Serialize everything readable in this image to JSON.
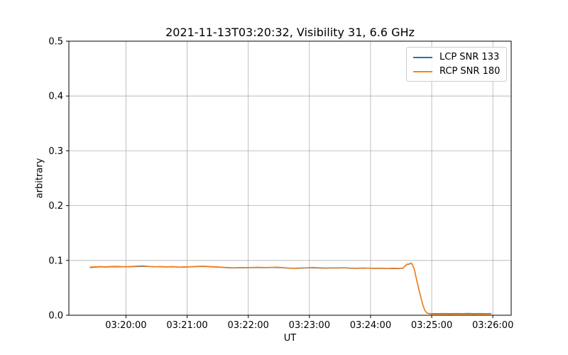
{
  "chart_data": {
    "type": "line",
    "title": "2021-11-13T03:20:32, Visibility 31, 6.6 GHz",
    "xlabel": "UT",
    "ylabel": "arbitrary",
    "x_unit": "seconds after 03:19:00 UT",
    "xlim": [
      4,
      438
    ],
    "ylim": [
      0.0,
      0.5
    ],
    "grid": true,
    "grid_color": "#b0b0b0",
    "axis_color": "#000000",
    "background_color": "#ffffff",
    "legend_position": "upper right",
    "xticks": [
      {
        "t": 60,
        "label": "03:20:00"
      },
      {
        "t": 120,
        "label": "03:21:00"
      },
      {
        "t": 180,
        "label": "03:22:00"
      },
      {
        "t": 240,
        "label": "03:23:00"
      },
      {
        "t": 300,
        "label": "03:24:00"
      },
      {
        "t": 360,
        "label": "03:25:00"
      },
      {
        "t": 420,
        "label": "03:26:00"
      }
    ],
    "yticks": [
      {
        "v": 0.0,
        "label": "0.0"
      },
      {
        "v": 0.1,
        "label": "0.1"
      },
      {
        "v": 0.2,
        "label": "0.2"
      },
      {
        "v": 0.3,
        "label": "0.3"
      },
      {
        "v": 0.4,
        "label": "0.4"
      },
      {
        "v": 0.5,
        "label": "0.5"
      }
    ],
    "series": [
      {
        "name": "LCP SNR 133",
        "color": "#1f77b4",
        "points": [
          [
            25,
            0.0872
          ],
          [
            30,
            0.0878
          ],
          [
            35,
            0.0884
          ],
          [
            40,
            0.088
          ],
          [
            45,
            0.0884
          ],
          [
            50,
            0.0886
          ],
          [
            55,
            0.0883
          ],
          [
            60,
            0.0884
          ],
          [
            65,
            0.0886
          ],
          [
            70,
            0.0888
          ],
          [
            76,
            0.0893
          ],
          [
            82,
            0.0889
          ],
          [
            88,
            0.0883
          ],
          [
            94,
            0.0884
          ],
          [
            100,
            0.0881
          ],
          [
            106,
            0.0884
          ],
          [
            112,
            0.0877
          ],
          [
            118,
            0.088
          ],
          [
            124,
            0.0884
          ],
          [
            130,
            0.0887
          ],
          [
            136,
            0.089
          ],
          [
            142,
            0.0886
          ],
          [
            148,
            0.088
          ],
          [
            154,
            0.0874
          ],
          [
            160,
            0.0867
          ],
          [
            166,
            0.0863
          ],
          [
            172,
            0.0868
          ],
          [
            178,
            0.0866
          ],
          [
            184,
            0.0869
          ],
          [
            190,
            0.0872
          ],
          [
            196,
            0.0868
          ],
          [
            202,
            0.087
          ],
          [
            208,
            0.0872
          ],
          [
            214,
            0.0866
          ],
          [
            220,
            0.0858
          ],
          [
            226,
            0.0855
          ],
          [
            232,
            0.086
          ],
          [
            238,
            0.0863
          ],
          [
            244,
            0.0867
          ],
          [
            250,
            0.0862
          ],
          [
            256,
            0.0859
          ],
          [
            262,
            0.0863
          ],
          [
            268,
            0.0861
          ],
          [
            274,
            0.0864
          ],
          [
            280,
            0.0858
          ],
          [
            286,
            0.0855
          ],
          [
            292,
            0.0859
          ],
          [
            298,
            0.0857
          ],
          [
            304,
            0.0853
          ],
          [
            310,
            0.0856
          ],
          [
            316,
            0.0851
          ],
          [
            322,
            0.0854
          ],
          [
            328,
            0.0852
          ],
          [
            332,
            0.0858
          ],
          [
            334,
            0.09
          ],
          [
            336,
            0.0929
          ],
          [
            338,
            0.0932
          ],
          [
            339.5,
            0.095
          ],
          [
            341,
            0.0926
          ],
          [
            343,
            0.0836
          ],
          [
            345,
            0.0661
          ],
          [
            347,
            0.0506
          ],
          [
            349,
            0.0351
          ],
          [
            351,
            0.0206
          ],
          [
            353,
            0.0097
          ],
          [
            355,
            0.0044
          ],
          [
            357,
            0.0032
          ],
          [
            360,
            0.003
          ],
          [
            366,
            0.0029
          ],
          [
            372,
            0.0031
          ],
          [
            378,
            0.0029
          ],
          [
            384,
            0.0031
          ],
          [
            390,
            0.003
          ],
          [
            396,
            0.0032
          ],
          [
            402,
            0.0029
          ],
          [
            408,
            0.0031
          ],
          [
            413,
            0.003
          ],
          [
            418,
            0.0031
          ]
        ]
      },
      {
        "name": "RCP SNR 180",
        "color": "#ff7f0e",
        "points": [
          [
            25,
            0.088
          ],
          [
            30,
            0.0884
          ],
          [
            35,
            0.0889
          ],
          [
            40,
            0.0885
          ],
          [
            45,
            0.0891
          ],
          [
            50,
            0.0893
          ],
          [
            55,
            0.0888
          ],
          [
            60,
            0.0887
          ],
          [
            65,
            0.0891
          ],
          [
            70,
            0.0895
          ],
          [
            76,
            0.09
          ],
          [
            82,
            0.0893
          ],
          [
            88,
            0.0886
          ],
          [
            94,
            0.0889
          ],
          [
            100,
            0.0885
          ],
          [
            106,
            0.0888
          ],
          [
            112,
            0.088
          ],
          [
            118,
            0.0883
          ],
          [
            124,
            0.0887
          ],
          [
            130,
            0.0892
          ],
          [
            136,
            0.0895
          ],
          [
            142,
            0.089
          ],
          [
            148,
            0.0884
          ],
          [
            154,
            0.0878
          ],
          [
            160,
            0.087
          ],
          [
            166,
            0.0866
          ],
          [
            172,
            0.0871
          ],
          [
            178,
            0.0869
          ],
          [
            184,
            0.0873
          ],
          [
            190,
            0.0876
          ],
          [
            196,
            0.0871
          ],
          [
            202,
            0.0874
          ],
          [
            208,
            0.0877
          ],
          [
            214,
            0.0869
          ],
          [
            220,
            0.0862
          ],
          [
            226,
            0.0858
          ],
          [
            232,
            0.0864
          ],
          [
            238,
            0.0867
          ],
          [
            244,
            0.0871
          ],
          [
            250,
            0.0866
          ],
          [
            256,
            0.0862
          ],
          [
            262,
            0.0867
          ],
          [
            268,
            0.0864
          ],
          [
            274,
            0.0868
          ],
          [
            280,
            0.0861
          ],
          [
            286,
            0.0858
          ],
          [
            292,
            0.0863
          ],
          [
            298,
            0.086
          ],
          [
            304,
            0.0856
          ],
          [
            310,
            0.086
          ],
          [
            316,
            0.0854
          ],
          [
            322,
            0.0857
          ],
          [
            328,
            0.0855
          ],
          [
            332,
            0.0862
          ],
          [
            334,
            0.0905
          ],
          [
            336,
            0.0933
          ],
          [
            338,
            0.0936
          ],
          [
            339.5,
            0.0955
          ],
          [
            341,
            0.093
          ],
          [
            343,
            0.084
          ],
          [
            345,
            0.0665
          ],
          [
            347,
            0.051
          ],
          [
            349,
            0.0355
          ],
          [
            351,
            0.021
          ],
          [
            353,
            0.01
          ],
          [
            355,
            0.0045
          ],
          [
            357,
            0.003
          ],
          [
            360,
            0.0023
          ],
          [
            366,
            0.0021
          ],
          [
            372,
            0.0022
          ],
          [
            378,
            0.002
          ],
          [
            384,
            0.0022
          ],
          [
            390,
            0.0021
          ],
          [
            396,
            0.0023
          ],
          [
            402,
            0.002
          ],
          [
            408,
            0.0022
          ],
          [
            413,
            0.0021
          ],
          [
            418,
            0.0022
          ]
        ]
      }
    ]
  }
}
